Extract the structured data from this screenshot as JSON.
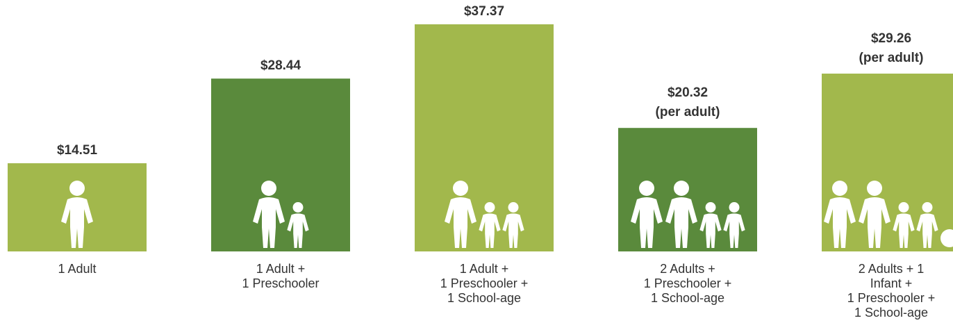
{
  "chart_data": {
    "type": "bar",
    "categories": [
      [
        "1 Adult"
      ],
      [
        "1 Adult +",
        "1 Preschooler"
      ],
      [
        "1 Adult +",
        "1 Preschooler +",
        "1 School-age"
      ],
      [
        "2 Adults +",
        "1 Preschooler +",
        "1 School-age"
      ],
      [
        "2 Adults + 1",
        "Infant +",
        "1 Preschooler +",
        "1 School-age"
      ]
    ],
    "values": [
      14.51,
      28.44,
      37.37,
      20.32,
      29.26
    ],
    "value_labels": [
      "$14.51",
      "$28.44",
      "$37.37",
      "$20.32",
      "$29.26"
    ],
    "notes": [
      null,
      null,
      null,
      "(per adult)",
      "(per adult)"
    ],
    "colors": [
      "#a2b84c",
      "#5a8a3c",
      "#a2b84c",
      "#5a8a3c",
      "#a2b84c"
    ],
    "ylim": [
      0,
      40
    ]
  }
}
